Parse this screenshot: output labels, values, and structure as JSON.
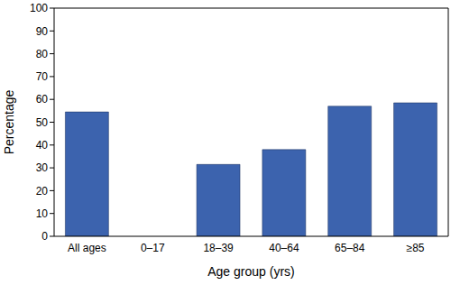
{
  "chart_data": {
    "type": "bar",
    "x_label": "Age group (yrs)",
    "y_label": "Percentage",
    "categories": [
      "All ages",
      "0–17",
      "18–39",
      "40–64",
      "65–84",
      "≥85"
    ],
    "values": [
      54.5,
      null,
      31.5,
      38,
      57,
      58.5
    ],
    "color": "#3c63ae",
    "ylim": [
      0,
      100
    ],
    "yticks": [
      0,
      10,
      20,
      30,
      40,
      50,
      60,
      70,
      80,
      90,
      100
    ],
    "grid": false
  }
}
